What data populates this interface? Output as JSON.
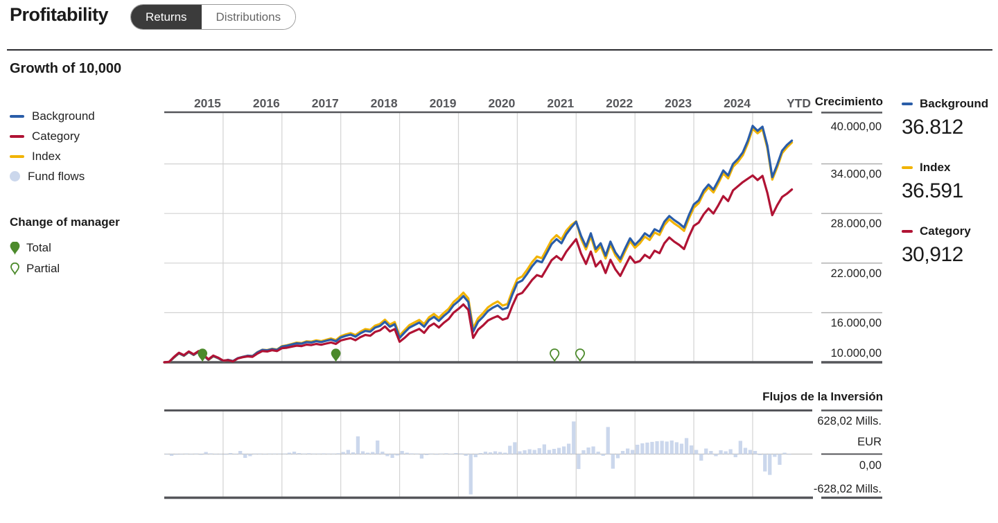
{
  "header": {
    "title": "Profitability",
    "toggle": {
      "active": "Returns",
      "options": [
        "Returns",
        "Distributions"
      ]
    }
  },
  "section": {
    "title": "Growth of 10,000"
  },
  "legend": {
    "items": [
      {
        "label": "Background",
        "color": "#2A5DA8",
        "type": "line"
      },
      {
        "label": "Category",
        "color": "#B01334",
        "type": "line"
      },
      {
        "label": "Index",
        "color": "#F1B300",
        "type": "line"
      },
      {
        "label": "Fund flows",
        "color": "#CBD7EC",
        "type": "dot"
      }
    ]
  },
  "manager_legend": {
    "title": "Change of manager",
    "color": "#4C8A2B",
    "items": [
      {
        "label": "Total",
        "style": "filled"
      },
      {
        "label": "Partial",
        "style": "outline"
      }
    ]
  },
  "right_axis": {
    "title": "Crecimiento",
    "ticks": [
      "40.000,00",
      "34.000,00",
      "28.000,00",
      "22.000,00",
      "16.000,00",
      "10.000,00"
    ]
  },
  "summary": {
    "entries": [
      {
        "label": "Background",
        "value": "36.812",
        "color": "#2A5DA8"
      },
      {
        "label": "Index",
        "value": "36.591",
        "color": "#F1B300"
      },
      {
        "label": "Category",
        "value": "30,912",
        "color": "#B01334"
      }
    ]
  },
  "flows_axis": {
    "title": "Flujos de la Inversión",
    "tick_top": "628,02 Mills.",
    "tick_top_unit": "EUR",
    "tick_zero": "0,00",
    "tick_bottom": "-628,02 Mills."
  },
  "colors": {
    "chart_border": "#55565a",
    "grid": "#d2d2d2",
    "zero_line": "#bdbdbd",
    "year_label": "#56575b",
    "tick_label": "#222222",
    "toggle_dark": "#3b3b3b"
  },
  "chart_data": [
    {
      "type": "line",
      "title": "Growth of 10,000",
      "x_labels": [
        "2015",
        "2016",
        "2017",
        "2018",
        "2019",
        "2020",
        "2021",
        "2022",
        "2023",
        "2024",
        "YTD"
      ],
      "months_start": "2015-01",
      "start_value": 10000,
      "ylim": [
        10000,
        40250
      ],
      "y_tick_values": [
        40000,
        34000,
        28000,
        22000,
        16000,
        10000
      ],
      "grid": true,
      "legend_position": "left",
      "series": [
        {
          "name": "Background",
          "color": "#2A5DA8",
          "final_value": 36812,
          "values": [
            10050,
            10600,
            11100,
            10800,
            11250,
            10900,
            11300,
            10850,
            10300,
            10750,
            10500,
            10150,
            10300,
            10150,
            10500,
            10650,
            10800,
            10750,
            11200,
            11500,
            11450,
            11600,
            11500,
            11900,
            12000,
            12150,
            12300,
            12250,
            12450,
            12400,
            12550,
            12450,
            12600,
            12750,
            12550,
            13000,
            13200,
            13350,
            13100,
            13500,
            13800,
            13700,
            14200,
            14400,
            14900,
            14300,
            14600,
            12950,
            13600,
            14200,
            14500,
            14800,
            14300,
            15100,
            15500,
            15000,
            15600,
            16100,
            16900,
            17400,
            18000,
            17300,
            13700,
            14900,
            15500,
            16200,
            16600,
            16900,
            16400,
            16600,
            18200,
            19600,
            19900,
            20700,
            21600,
            22300,
            22100,
            23200,
            24300,
            24900,
            24400,
            25500,
            26300,
            27000,
            25300,
            24000,
            25600,
            23700,
            24400,
            22900,
            24600,
            23300,
            22500,
            23800,
            25000,
            24200,
            24800,
            25600,
            25200,
            26100,
            25800,
            27000,
            27700,
            27200,
            26800,
            26300,
            27800,
            29100,
            29600,
            30800,
            31500,
            30900,
            32000,
            33200,
            32600,
            34000,
            34600,
            35400,
            36800,
            38600,
            38000,
            38500,
            36200,
            32400,
            33900,
            35600,
            36300,
            36812
          ]
        },
        {
          "name": "Category",
          "color": "#B01334",
          "final_value": 30912,
          "values": [
            10060,
            10660,
            11160,
            10860,
            11310,
            10960,
            11360,
            10910,
            10360,
            10810,
            10560,
            10210,
            10260,
            10110,
            10460,
            10610,
            10710,
            10660,
            11060,
            11360,
            11310,
            11460,
            11360,
            11710,
            11760,
            11890,
            12010,
            11960,
            12140,
            12090,
            12220,
            12120,
            12260,
            12400,
            12220,
            12640,
            12790,
            12920,
            12670,
            13040,
            13310,
            13210,
            13680,
            13860,
            14330,
            13740,
            14010,
            12480,
            12950,
            13500,
            13770,
            14040,
            13560,
            14320,
            14690,
            14210,
            14780,
            15240,
            16000,
            16460,
            17000,
            16340,
            12950,
            13950,
            14450,
            15050,
            15350,
            15600,
            15150,
            15350,
            16850,
            18150,
            18400,
            19150,
            19950,
            20550,
            20350,
            21350,
            22350,
            22850,
            22380,
            23380,
            24150,
            24900,
            23150,
            21900,
            23400,
            21600,
            22250,
            20800,
            22400,
            21250,
            20450,
            21650,
            22800,
            22050,
            22250,
            23000,
            22600,
            23500,
            23200,
            24400,
            25100,
            24600,
            24200,
            23700,
            25200,
            26500,
            26900,
            27900,
            28600,
            28000,
            29000,
            30100,
            29500,
            30800,
            31300,
            31800,
            32200,
            32600,
            32050,
            32550,
            30500,
            27800,
            29000,
            30000,
            30400,
            30912
          ]
        },
        {
          "name": "Index",
          "color": "#F1B300",
          "final_value": 36591,
          "values": [
            10040,
            10580,
            11080,
            10780,
            11230,
            10880,
            11280,
            10830,
            10280,
            10730,
            10480,
            10130,
            10290,
            10140,
            10490,
            10650,
            10800,
            10760,
            11220,
            11520,
            11480,
            11630,
            11540,
            11950,
            12060,
            12220,
            12380,
            12330,
            12540,
            12500,
            12660,
            12560,
            12720,
            12880,
            12690,
            13150,
            13370,
            13530,
            13290,
            13700,
            14010,
            13920,
            14430,
            14640,
            15150,
            14560,
            14870,
            13230,
            13890,
            14500,
            14810,
            15120,
            14630,
            15440,
            15850,
            15360,
            15970,
            16480,
            17290,
            17800,
            18420,
            17730,
            14100,
            15320,
            15930,
            16640,
            17050,
            17360,
            16860,
            17060,
            18670,
            20080,
            20380,
            21190,
            22090,
            22790,
            22590,
            23690,
            24790,
            25380,
            24870,
            25920,
            26600,
            27050,
            24950,
            23650,
            25250,
            23350,
            24050,
            22550,
            24250,
            22950,
            22150,
            23450,
            24650,
            23850,
            24400,
            25200,
            24800,
            25700,
            25400,
            26600,
            27300,
            26800,
            26400,
            25900,
            27400,
            28700,
            29250,
            30450,
            31150,
            30550,
            31650,
            32850,
            32250,
            33650,
            34250,
            35050,
            36450,
            38250,
            37700,
            38200,
            35900,
            32100,
            33600,
            35300,
            36000,
            36591
          ]
        }
      ],
      "manager_changes": [
        {
          "month": 7.8,
          "type": "Total"
        },
        {
          "month": 35.0,
          "type": "Total"
        },
        {
          "month": 79.6,
          "type": "Partial"
        },
        {
          "month": 84.8,
          "type": "Partial"
        }
      ]
    },
    {
      "type": "bar",
      "title": "Flujos de la Inversión",
      "unit": "Mills. EUR",
      "ylim": [
        -628.02,
        628.02
      ],
      "color": "#CBD7EC",
      "values": [
        -8,
        -25,
        -10,
        -5,
        4,
        -6,
        2,
        -12,
        30,
        10,
        -5,
        -8,
        -10,
        15,
        -6,
        45,
        -55,
        -30,
        5,
        8,
        -6,
        4,
        8,
        5,
        5,
        20,
        35,
        15,
        8,
        12,
        6,
        4,
        10,
        8,
        5,
        12,
        30,
        60,
        25,
        255,
        40,
        20,
        30,
        195,
        35,
        -30,
        -55,
        -20,
        45,
        20,
        10,
        5,
        -65,
        -15,
        8,
        -10,
        5,
        12,
        -8,
        15,
        10,
        -25,
        -580,
        -45,
        15,
        35,
        25,
        40,
        30,
        20,
        120,
        170,
        40,
        55,
        70,
        60,
        85,
        140,
        60,
        75,
        90,
        110,
        150,
        470,
        -215,
        55,
        95,
        110,
        35,
        -25,
        390,
        -210,
        -60,
        45,
        80,
        60,
        135,
        155,
        165,
        175,
        185,
        190,
        180,
        195,
        170,
        150,
        230,
        125,
        60,
        -95,
        80,
        45,
        -30,
        55,
        40,
        70,
        -45,
        190,
        90,
        60,
        45,
        -15,
        -250,
        -300,
        -40,
        -155,
        20,
        -10
      ]
    }
  ]
}
